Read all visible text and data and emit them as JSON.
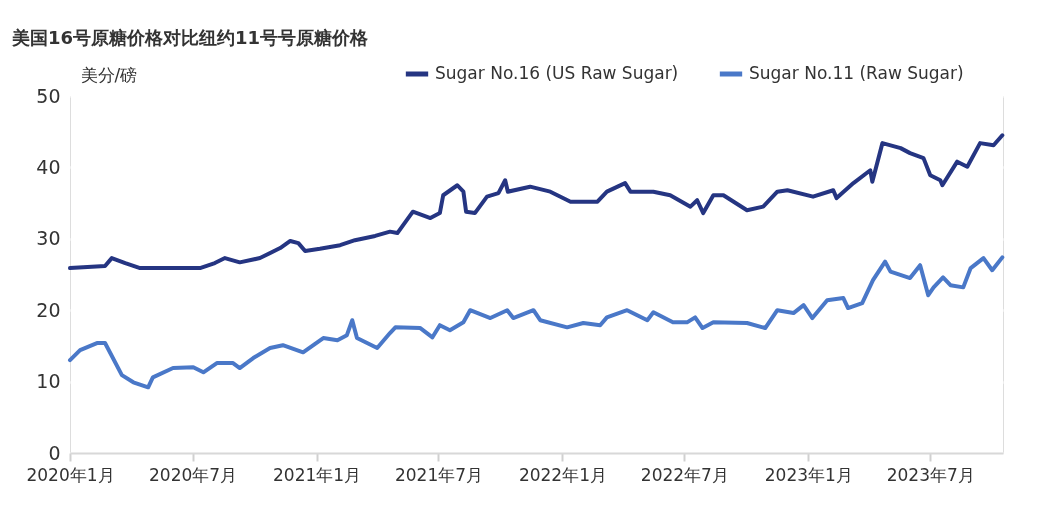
{
  "chart_data": {
    "type": "line",
    "title": "美国16号原糖价格对比纽约11号号原糖价格",
    "ylabel": "美分/磅",
    "xlim": [
      "2020-01-01",
      "2023-10-17"
    ],
    "xticks": [
      {
        "value": "2020-01-01",
        "label": "2020年1月"
      },
      {
        "value": "2020-07-01",
        "label": "2020年7月"
      },
      {
        "value": "2021-01-01",
        "label": "2021年1月"
      },
      {
        "value": "2021-07-01",
        "label": "2021年7月"
      },
      {
        "value": "2022-01-01",
        "label": "2022年1月"
      },
      {
        "value": "2022-07-01",
        "label": "2022年7月"
      },
      {
        "value": "2023-01-01",
        "label": "2023年1月"
      },
      {
        "value": "2023-07-01",
        "label": "2023年7月"
      }
    ],
    "ylim": [
      0,
      50
    ],
    "yticks": [
      0,
      10,
      20,
      30,
      40,
      50
    ],
    "grid": "y",
    "legend": "top right",
    "line_style": "solid",
    "marker": "none",
    "series": [
      {
        "name": "Sugar No.16 (US Raw Sugar)",
        "color": "#253582",
        "x": [
          "2020-01-01",
          "2020-02-22",
          "2020-03-03",
          "2020-03-23",
          "2020-04-14",
          "2020-05-21",
          "2020-07-12",
          "2020-08-03",
          "2020-08-18",
          "2020-09-09",
          "2020-10-09",
          "2020-11-08",
          "2020-11-23",
          "2020-12-05",
          "2020-12-15",
          "2021-01-06",
          "2021-02-05",
          "2021-02-27",
          "2021-03-29",
          "2021-04-20",
          "2021-05-01",
          "2021-05-24",
          "2021-06-19",
          "2021-07-03",
          "2021-07-08",
          "2021-07-29",
          "2021-08-07",
          "2021-08-11",
          "2021-08-24",
          "2021-09-11",
          "2021-09-28",
          "2021-10-08",
          "2021-10-12",
          "2021-11-14",
          "2021-12-14",
          "2022-01-13",
          "2022-02-22",
          "2022-03-08",
          "2022-04-04",
          "2022-04-12",
          "2022-05-16",
          "2022-06-10",
          "2022-07-10",
          "2022-07-20",
          "2022-07-29",
          "2022-08-13",
          "2022-08-28",
          "2022-10-02",
          "2022-10-26",
          "2022-11-16",
          "2022-12-01",
          "2023-01-08",
          "2023-02-07",
          "2023-02-12",
          "2023-03-09",
          "2023-04-03",
          "2023-04-06",
          "2023-04-21",
          "2023-05-18",
          "2023-06-01",
          "2023-06-21",
          "2023-07-01",
          "2023-07-16",
          "2023-07-19",
          "2023-08-10",
          "2023-08-25",
          "2023-09-13",
          "2023-10-03",
          "2023-10-16"
        ],
        "values": [
          25.9,
          26.2,
          27.3,
          26.6,
          25.9,
          25.9,
          25.9,
          26.6,
          27.3,
          26.7,
          27.3,
          28.7,
          29.7,
          29.4,
          28.3,
          28.6,
          29.1,
          29.8,
          30.4,
          31.0,
          30.8,
          33.8,
          32.9,
          33.6,
          36.1,
          37.5,
          36.6,
          33.8,
          33.6,
          35.9,
          36.4,
          38.2,
          36.6,
          37.3,
          36.6,
          35.2,
          35.2,
          36.6,
          37.8,
          36.6,
          36.6,
          36.1,
          34.5,
          35.4,
          33.6,
          36.1,
          36.1,
          34.0,
          34.5,
          36.6,
          36.8,
          35.9,
          36.8,
          35.7,
          37.8,
          39.6,
          38.0,
          43.4,
          42.7,
          42.0,
          41.3,
          38.9,
          38.2,
          37.5,
          40.8,
          40.1,
          43.4,
          43.1,
          44.5
        ]
      },
      {
        "name": "Sugar No.11 (Raw Sugar)",
        "color": "#4a78c8",
        "x": [
          "2020-01-01",
          "2020-01-16",
          "2020-02-10",
          "2020-02-22",
          "2020-03-18",
          "2020-04-04",
          "2020-04-26",
          "2020-05-03",
          "2020-06-02",
          "2020-07-02",
          "2020-07-17",
          "2020-08-06",
          "2020-08-30",
          "2020-09-09",
          "2020-09-29",
          "2020-10-24",
          "2020-11-12",
          "2020-12-12",
          "2021-01-11",
          "2021-02-01",
          "2021-02-15",
          "2021-02-23",
          "2021-03-02",
          "2021-04-01",
          "2021-04-20",
          "2021-04-28",
          "2021-06-04",
          "2021-06-22",
          "2021-07-03",
          "2021-07-18",
          "2021-08-07",
          "2021-08-17",
          "2021-09-16",
          "2021-10-11",
          "2021-10-20",
          "2021-11-19",
          "2021-11-29",
          "2022-01-08",
          "2022-02-01",
          "2022-02-26",
          "2022-03-08",
          "2022-04-07",
          "2022-05-07",
          "2022-05-16",
          "2022-06-14",
          "2022-07-05",
          "2022-07-17",
          "2022-07-28",
          "2022-08-13",
          "2022-10-02",
          "2022-10-29",
          "2022-11-16",
          "2022-12-10",
          "2022-12-25",
          "2023-01-07",
          "2023-01-29",
          "2023-02-22",
          "2023-03-01",
          "2023-03-22",
          "2023-04-07",
          "2023-04-25",
          "2023-05-03",
          "2023-06-01",
          "2023-06-16",
          "2023-06-28",
          "2023-07-06",
          "2023-07-20",
          "2023-07-31",
          "2023-08-19",
          "2023-08-30",
          "2023-09-18",
          "2023-10-01",
          "2023-10-16"
        ],
        "values": [
          13.0,
          14.4,
          15.4,
          15.4,
          10.9,
          9.9,
          9.2,
          10.6,
          11.9,
          12.0,
          11.3,
          12.6,
          12.6,
          11.9,
          13.3,
          14.7,
          15.1,
          14.1,
          16.1,
          15.8,
          16.5,
          18.6,
          16.1,
          14.7,
          16.8,
          17.6,
          17.5,
          16.2,
          17.9,
          17.2,
          18.3,
          20.0,
          18.9,
          20.0,
          18.9,
          20.0,
          18.6,
          17.6,
          18.2,
          17.9,
          19.0,
          20.0,
          18.6,
          19.7,
          18.3,
          18.3,
          19.0,
          17.5,
          18.3,
          18.2,
          17.5,
          20.0,
          19.6,
          20.7,
          18.9,
          21.4,
          21.7,
          20.3,
          21.0,
          24.2,
          26.8,
          25.4,
          24.5,
          26.3,
          22.1,
          23.2,
          24.6,
          23.5,
          23.2,
          25.9,
          27.3,
          25.6,
          27.4
        ]
      }
    ]
  }
}
